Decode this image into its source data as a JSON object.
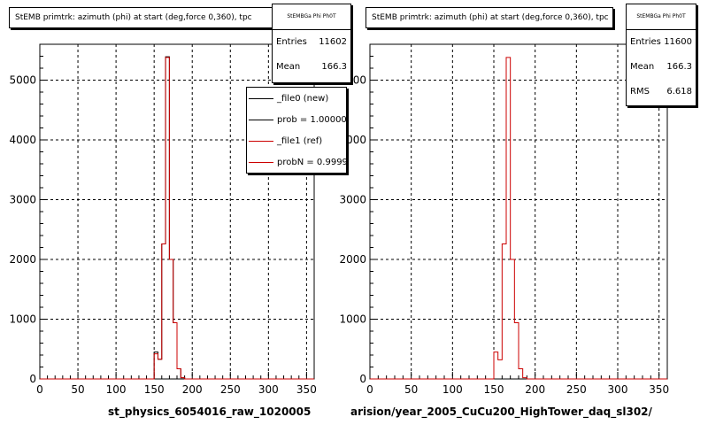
{
  "panels": [
    {
      "title": "StEMB primtrk: azimuth (phi) at start (deg,force 0,360), tpc",
      "stats": {
        "name": "StEMBGa Phi Ph0T",
        "rows": [
          {
            "label": "Entries",
            "value": "11602"
          },
          {
            "label": "Mean",
            "value": "166.3"
          }
        ]
      },
      "legend": [
        {
          "label": "_file0 (new)",
          "color": "#000000"
        },
        {
          "label": "prob = 1.000000",
          "color": "#000000"
        },
        {
          "label": "_file1 (ref)",
          "color": "#cc0000"
        },
        {
          "label": "probN = 0.99994",
          "color": "#cc0000"
        }
      ],
      "xfooter": "st_physics_6054016_raw_1020005"
    },
    {
      "title": "StEMB primtrk: azimuth (phi) at start (deg,force 0,360), tpc",
      "stats": {
        "name": "StEMBGa Phi Ph0T",
        "rows": [
          {
            "label": "Entries",
            "value": "11600"
          },
          {
            "label": "Mean",
            "value": "166.3"
          },
          {
            "label": "RMS",
            "value": "6.618"
          }
        ]
      },
      "legend": [],
      "xfooter": "arision/year_2005_CuCu200_HighTower_daq_sl302/"
    }
  ],
  "corner_text": "",
  "chart_data": [
    {
      "type": "bar",
      "title": "StEMB primtrk: azimuth (phi) at start (deg,force 0,360), tpc",
      "xlim": [
        0,
        360
      ],
      "ylim": [
        0,
        5600
      ],
      "xticks": [
        0,
        50,
        100,
        150,
        200,
        250,
        300,
        350
      ],
      "yticks": [
        0,
        1000,
        2000,
        3000,
        4000,
        5000
      ],
      "grid": true,
      "bin_width": 5,
      "series": [
        {
          "name": "_file0 (new)",
          "color": "#000000",
          "bins": [
            {
              "x": 150,
              "y": 450
            },
            {
              "x": 155,
              "y": 330
            },
            {
              "x": 160,
              "y": 2260
            },
            {
              "x": 165,
              "y": 5390
            },
            {
              "x": 170,
              "y": 2000
            },
            {
              "x": 175,
              "y": 940
            },
            {
              "x": 180,
              "y": 170
            },
            {
              "x": 185,
              "y": 20
            }
          ]
        },
        {
          "name": "_file1 (ref)",
          "color": "#cc0000",
          "bins": [
            {
              "x": 150,
              "y": 420
            },
            {
              "x": 155,
              "y": 330
            },
            {
              "x": 160,
              "y": 2260
            },
            {
              "x": 165,
              "y": 5380
            },
            {
              "x": 170,
              "y": 2000
            },
            {
              "x": 175,
              "y": 940
            },
            {
              "x": 180,
              "y": 170
            },
            {
              "x": 185,
              "y": 20
            }
          ]
        }
      ]
    },
    {
      "type": "bar",
      "title": "StEMB primtrk: azimuth (phi) at start (deg,force 0,360), tpc",
      "xlim": [
        0,
        360
      ],
      "ylim": [
        0,
        5600
      ],
      "xticks": [
        0,
        50,
        100,
        150,
        200,
        250,
        300,
        350
      ],
      "yticks": [
        0,
        1000,
        2000,
        3000,
        4000,
        5000
      ],
      "grid": true,
      "bin_width": 5,
      "series": [
        {
          "name": "",
          "color": "#cc0000",
          "bins": [
            {
              "x": 150,
              "y": 450
            },
            {
              "x": 155,
              "y": 320
            },
            {
              "x": 160,
              "y": 2260
            },
            {
              "x": 165,
              "y": 5380
            },
            {
              "x": 170,
              "y": 2000
            },
            {
              "x": 175,
              "y": 940
            },
            {
              "x": 180,
              "y": 170
            },
            {
              "x": 185,
              "y": 20
            }
          ]
        }
      ]
    }
  ]
}
